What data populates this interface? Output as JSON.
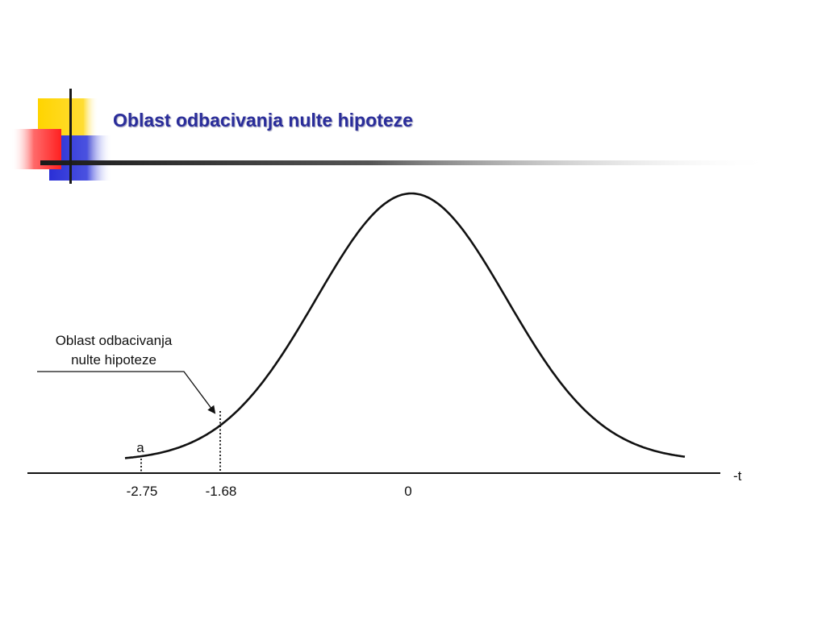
{
  "slide": {
    "title": "Oblast odbacivanja nulte hipoteze"
  },
  "diagram": {
    "callout_label_line1": "Oblast odbacivanja",
    "callout_label_line2": "nulte hipoteze",
    "alpha_label": "a",
    "axis_label": "-t",
    "tick_labels": [
      "-2.75",
      "-1.68",
      "0"
    ]
  },
  "colors": {
    "title": "#2a2d9a",
    "square_yellow": "#ffd400",
    "square_red": "#ff3030",
    "square_blue": "#2a2fd6",
    "curve": "#111111"
  }
}
